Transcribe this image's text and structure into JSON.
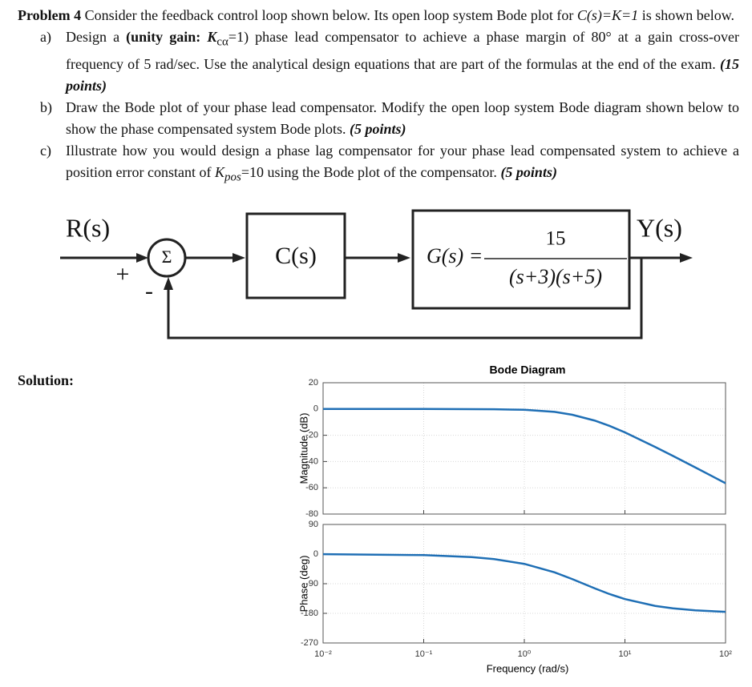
{
  "problem": {
    "label": "Problem 4",
    "text_1": " Consider the feedback control loop shown below. Its open loop system Bode plot for ",
    "expr": "C(s)=K=1",
    "text_2": " is shown below."
  },
  "items": [
    {
      "marker": "a)",
      "runs": [
        "Design a ",
        "(unity gain: ",
        "K",
        "cα",
        "=1)",
        " phase lead compensator to achieve a phase margin of 80° at a gain cross-over frequency of 5 rad/sec. Use the analytical design equations that are part of the formulas at the end of the exam. ",
        "(15 points)"
      ]
    },
    {
      "marker": "b)",
      "runs": [
        "Draw the Bode plot of your phase lead compensator. Modify the open loop system Bode diagram shown below to show the phase compensated system Bode plots. ",
        "(5 points)"
      ]
    },
    {
      "marker": "c)",
      "runs": [
        "Illustrate how you would design a phase lag compensator for your phase lead compensated system to achieve a position error constant of ",
        "K",
        "pos",
        "=10 using the Bode plot of the compensator. ",
        "(5 points)"
      ]
    }
  ],
  "diagram": {
    "input": "R(s)",
    "sum": "Σ",
    "plus": "+",
    "minus": "-",
    "controller": "C(s)",
    "plant_lhs": "G(s) =",
    "plant_num": "15",
    "plant_den": "(s+3)(s+5)",
    "output": "Y(s)"
  },
  "solution_label": "Solution:",
  "chart_data": [
    {
      "type": "line",
      "title": "Bode Diagram",
      "ylabel": "Magnitude (dB)",
      "xscale": "log",
      "xlim": [
        0.01,
        100
      ],
      "ylim": [
        -80,
        20
      ],
      "yticks": [
        20,
        0,
        -20,
        -40,
        -60,
        -80
      ],
      "grid": true,
      "color": "#1f6fb5",
      "x": [
        0.01,
        0.1,
        0.3,
        0.5,
        1,
        2,
        3,
        5,
        7,
        10,
        20,
        30,
        50,
        100
      ],
      "values": [
        0,
        0,
        -0.1,
        -0.2,
        -0.6,
        -2.2,
        -4.4,
        -8.8,
        -12.8,
        -17.8,
        -28.9,
        -35.7,
        -44.5,
        -56.5
      ]
    },
    {
      "type": "line",
      "ylabel": "Phase (deg)",
      "xlabel": "Frequency (rad/s)",
      "xscale": "log",
      "xlim": [
        0.01,
        100
      ],
      "ylim": [
        -270,
        90
      ],
      "yticks": [
        90,
        0,
        -90,
        -180,
        -270
      ],
      "xticks": [
        {
          "value": 0.01,
          "label": "10⁻²"
        },
        {
          "value": 0.1,
          "label": "10⁻¹"
        },
        {
          "value": 1,
          "label": "10⁰"
        },
        {
          "value": 10,
          "label": "10¹"
        },
        {
          "value": 100,
          "label": "10²"
        }
      ],
      "grid": true,
      "color": "#1f6fb5",
      "x": [
        0.01,
        0.1,
        0.3,
        0.5,
        1,
        2,
        3,
        5,
        7,
        10,
        20,
        30,
        50,
        100
      ],
      "values": [
        -0.3,
        -3.1,
        -9.1,
        -15.2,
        -29.7,
        -55.5,
        -76,
        -104,
        -121.3,
        -136.7,
        -157.4,
        -164.8,
        -170.9,
        -175.4
      ]
    }
  ]
}
